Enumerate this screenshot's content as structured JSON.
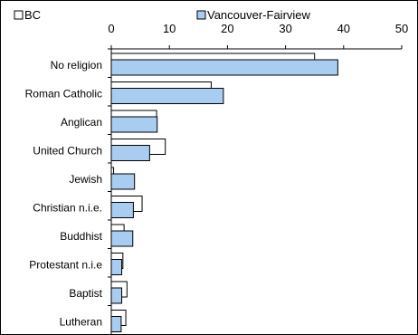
{
  "chart_data": {
    "type": "bar",
    "orientation": "horizontal",
    "categories": [
      "No religion",
      "Roman Catholic",
      "Anglican",
      "United Church",
      "Jewish",
      "Christian n.i.e.",
      "Buddhist",
      "Protestant n.i.e",
      "Baptist",
      "Lutheran"
    ],
    "series": [
      {
        "name": "BC",
        "color": "#ffffff",
        "values": [
          35.0,
          17.2,
          7.8,
          9.3,
          0.4,
          5.3,
          2.2,
          2.0,
          2.7,
          2.5
        ]
      },
      {
        "name": "Vancouver-Fairview",
        "color": "#a9cdf0",
        "values": [
          39.0,
          19.3,
          7.9,
          6.6,
          4.0,
          3.8,
          3.7,
          1.8,
          1.8,
          1.7
        ]
      }
    ],
    "xlim": [
      0,
      50
    ],
    "xticks": [
      0,
      10,
      20,
      30,
      40,
      50
    ],
    "xaxis_position": "top",
    "legend_position": "top",
    "grid": false
  }
}
